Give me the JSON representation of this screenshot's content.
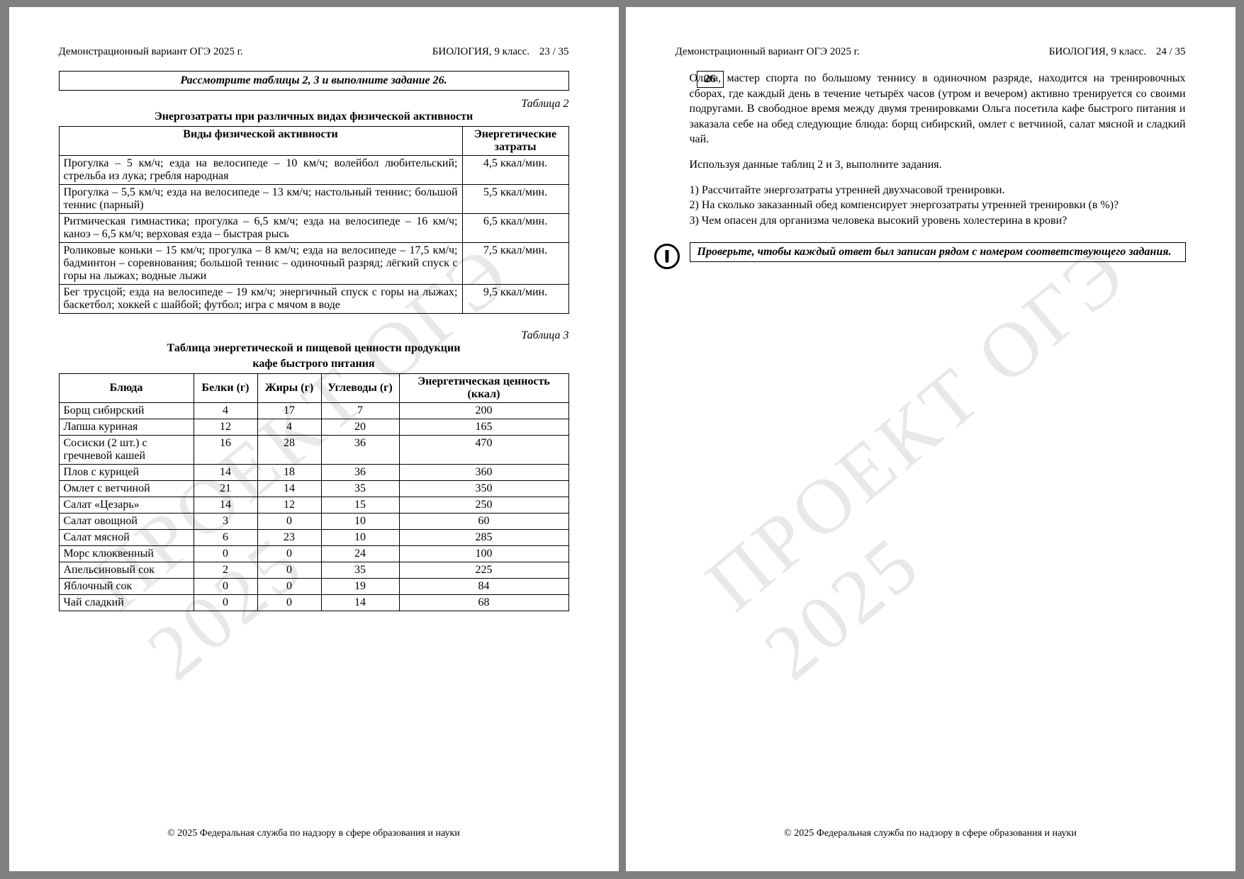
{
  "doc": {
    "header_left": "Демонстрационный вариант ОГЭ 2025 г.",
    "header_subject": "БИОЛОГИЯ, 9 класс.",
    "page_left_num": "23 / 35",
    "page_right_num": "24 / 35",
    "footer": "© 2025 Федеральная служба по надзору в сфере образования и науки",
    "watermark": "ПРОЕКТ ОГЭ 2025"
  },
  "left": {
    "instruction": "Рассмотрите таблицы 2, 3 и выполните задание 26.",
    "table2": {
      "caption_num": "Таблица 2",
      "caption": "Энергозатраты при различных видах физической активности",
      "columns": [
        "Виды физической активности",
        "Энергетические затраты"
      ],
      "rows": [
        [
          "Прогулка – 5 км/ч; езда на велосипеде – 10 км/ч; волейбол любительский; стрельба из лука; гребля народная",
          "4,5 ккал/мин."
        ],
        [
          "Прогулка – 5,5 км/ч; езда на велосипеде – 13 км/ч; настольный теннис; большой теннис (парный)",
          "5,5 ккал/мин."
        ],
        [
          "Ритмическая гимнастика; прогулка – 6,5 км/ч; езда на велосипеде – 16 км/ч; каноэ – 6,5 км/ч; верховая езда – быстрая рысь",
          "6,5 ккал/мин."
        ],
        [
          "Роликовые коньки – 15 км/ч; прогулка – 8 км/ч; езда на велосипеде – 17,5 км/ч; бадминтон – соревнования; большой теннис – одиночный разряд; лёгкий спуск с горы на лыжах; водные лыжи",
          "7,5 ккал/мин."
        ],
        [
          "Бег трусцой; езда на велосипеде – 19 км/ч; энергичный спуск с горы на лыжах; баскетбол; хоккей с шайбой; футбол; игра с мячом в воде",
          "9,5 ккал/мин."
        ]
      ]
    },
    "table3": {
      "caption_num": "Таблица 3",
      "caption_line1": "Таблица энергетической и пищевой ценности продукции",
      "caption_line2": "кафе быстрого питания",
      "columns": [
        "Блюда",
        "Белки (г)",
        "Жиры (г)",
        "Углеводы (г)",
        "Энергетическая ценность (ккал)"
      ],
      "col_widths": [
        "190px",
        "90px",
        "90px",
        "110px",
        "auto"
      ],
      "rows": [
        [
          "Борщ сибирский",
          "4",
          "17",
          "7",
          "200"
        ],
        [
          "Лапша куриная",
          "12",
          "4",
          "20",
          "165"
        ],
        [
          "Сосиски (2 шт.) с гречневой кашей",
          "16",
          "28",
          "36",
          "470"
        ],
        [
          "Плов с курицей",
          "14",
          "18",
          "36",
          "360"
        ],
        [
          "Омлет с ветчиной",
          "21",
          "14",
          "35",
          "350"
        ],
        [
          "Салат «Цезарь»",
          "14",
          "12",
          "15",
          "250"
        ],
        [
          "Салат овощной",
          "3",
          "0",
          "10",
          "60"
        ],
        [
          "Салат мясной",
          "6",
          "23",
          "10",
          "285"
        ],
        [
          "Морс клюквенный",
          "0",
          "0",
          "24",
          "100"
        ],
        [
          "Апельсиновый сок",
          "2",
          "0",
          "35",
          "225"
        ],
        [
          "Яблочный сок",
          "0",
          "0",
          "19",
          "84"
        ],
        [
          "Чай сладкий",
          "0",
          "0",
          "14",
          "68"
        ]
      ]
    }
  },
  "right": {
    "task_num": "26",
    "para1": "Ольга, мастер спорта по большому теннису в одиночном разряде, находится на тренировочных сборах, где каждый день в течение четырёх часов (утром и вечером) активно тренируется со своими подругами. В свободное время между двумя тренировками Ольга посетила кафе быстрого питания и заказала себе на обед следующие блюда: борщ сибирский, омлет с ветчиной, салат мясной и сладкий чай.",
    "para2": "Используя данные таблиц 2 и 3, выполните задания.",
    "q1": "1) Рассчитайте энергозатраты утренней двухчасовой тренировки.",
    "q2": "2) На сколько заказанный обед компенсирует энергозатраты утренней тренировки (в %)?",
    "q3": "3) Чем опасен для организма человека высокий уровень холестерина в крови?",
    "alert": "Проверьте, чтобы каждый ответ был записан рядом с номером соответствующего задания."
  }
}
